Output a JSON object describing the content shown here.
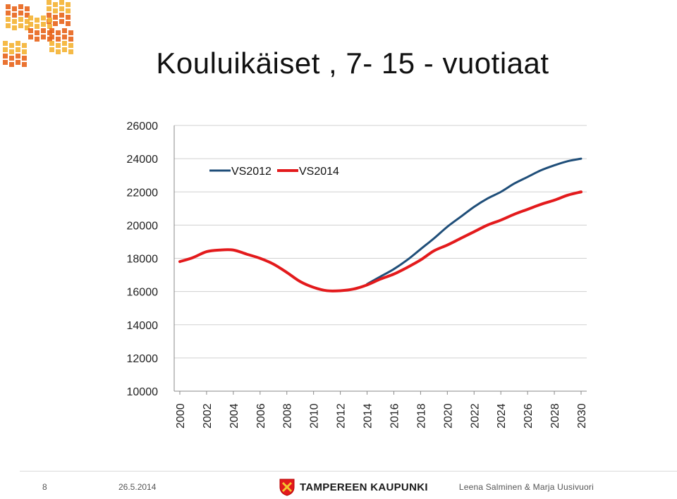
{
  "slide": {
    "number": "8",
    "date": "26.5.2014",
    "organization": "TAMPEREEN KAUPUNKI",
    "authors": "Leena Salminen & Marja Uusivuori"
  },
  "logo_icon": "city-wave-logo-icon",
  "crest_icon": "tampere-crest-icon",
  "colors": {
    "VS2012": "#1f4e79",
    "VS2014": "#e31a1c",
    "grid": "#d0d0d0",
    "logo_orange": "#e8641b",
    "logo_yellow": "#f4b233"
  },
  "chart_data": {
    "type": "line",
    "title": "Kouluikäiset , 7- 15 - vuotiaat",
    "xlabel": "",
    "ylabel": "",
    "ylim": [
      10000,
      26000
    ],
    "yticks": [
      10000,
      12000,
      14000,
      16000,
      18000,
      20000,
      22000,
      24000,
      26000
    ],
    "xticks": [
      "2000",
      "2002",
      "2004",
      "2006",
      "2008",
      "2010",
      "2012",
      "2014",
      "2016",
      "2018",
      "2020",
      "2022",
      "2024",
      "2026",
      "2028",
      "2030"
    ],
    "grid": true,
    "legend_position": "top-left",
    "x": [
      2000,
      2001,
      2002,
      2003,
      2004,
      2005,
      2006,
      2007,
      2008,
      2009,
      2010,
      2011,
      2012,
      2013,
      2014,
      2015,
      2016,
      2017,
      2018,
      2019,
      2020,
      2021,
      2022,
      2023,
      2024,
      2025,
      2026,
      2027,
      2028,
      2029,
      2030
    ],
    "series": [
      {
        "name": "VS2012",
        "values": [
          null,
          null,
          null,
          null,
          null,
          null,
          null,
          null,
          null,
          null,
          null,
          null,
          null,
          null,
          16450,
          16900,
          17350,
          17900,
          18550,
          19200,
          19900,
          20500,
          21100,
          21600,
          22000,
          22500,
          22900,
          23300,
          23600,
          23850,
          24000
        ]
      },
      {
        "name": "VS2014",
        "values": [
          17800,
          18050,
          18400,
          18500,
          18500,
          18250,
          18000,
          17650,
          17150,
          16600,
          16250,
          16050,
          16050,
          16150,
          16400,
          16750,
          17050,
          17450,
          17900,
          18450,
          18800,
          19200,
          19600,
          20000,
          20300,
          20650,
          20950,
          21250,
          21500,
          21800,
          22000
        ]
      }
    ]
  }
}
